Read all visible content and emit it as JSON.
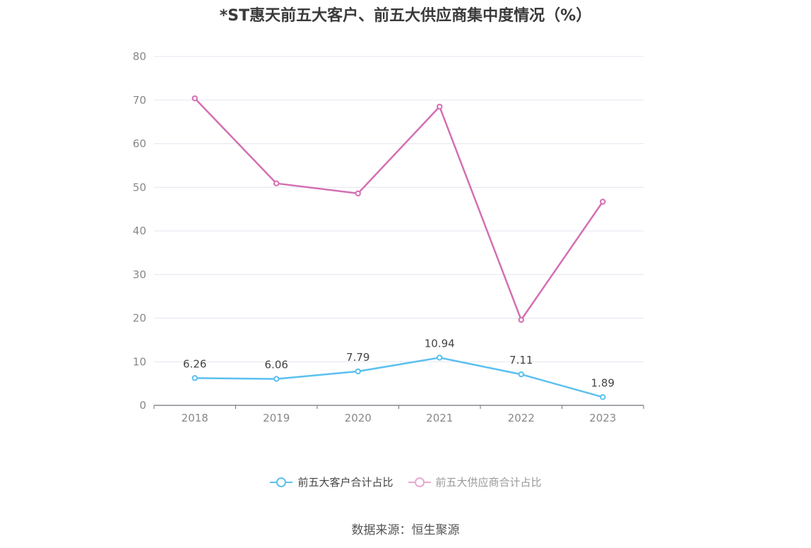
{
  "chart_data": {
    "type": "line",
    "title": "*ST惠天前五大客户、前五大供应商集中度情况（%）",
    "categories": [
      "2018",
      "2019",
      "2020",
      "2021",
      "2022",
      "2023"
    ],
    "series": [
      {
        "name": "前五大客户合计占比",
        "values": [
          6.26,
          6.06,
          7.79,
          10.94,
          7.11,
          1.89
        ],
        "color": "#5bc0f0",
        "show_labels": true
      },
      {
        "name": "前五大供应商合计占比",
        "values": [
          70.4,
          50.9,
          48.6,
          68.5,
          19.6,
          46.7
        ],
        "color": "#d46fb3",
        "show_labels": false
      }
    ],
    "ylim": [
      0,
      80
    ],
    "yticks": [
      "0",
      "10",
      "20",
      "30",
      "40",
      "50",
      "60",
      "70",
      "80"
    ],
    "grid": true,
    "legend_position": "bottom",
    "value_labels": [
      "6.26",
      "6.06",
      "7.79",
      "10.94",
      "7.11",
      "1.89"
    ]
  },
  "legend": {
    "customer_label": "前五大客户合计占比",
    "supplier_label": "前五大供应商合计占比"
  },
  "source": "数据来源：恒生聚源"
}
